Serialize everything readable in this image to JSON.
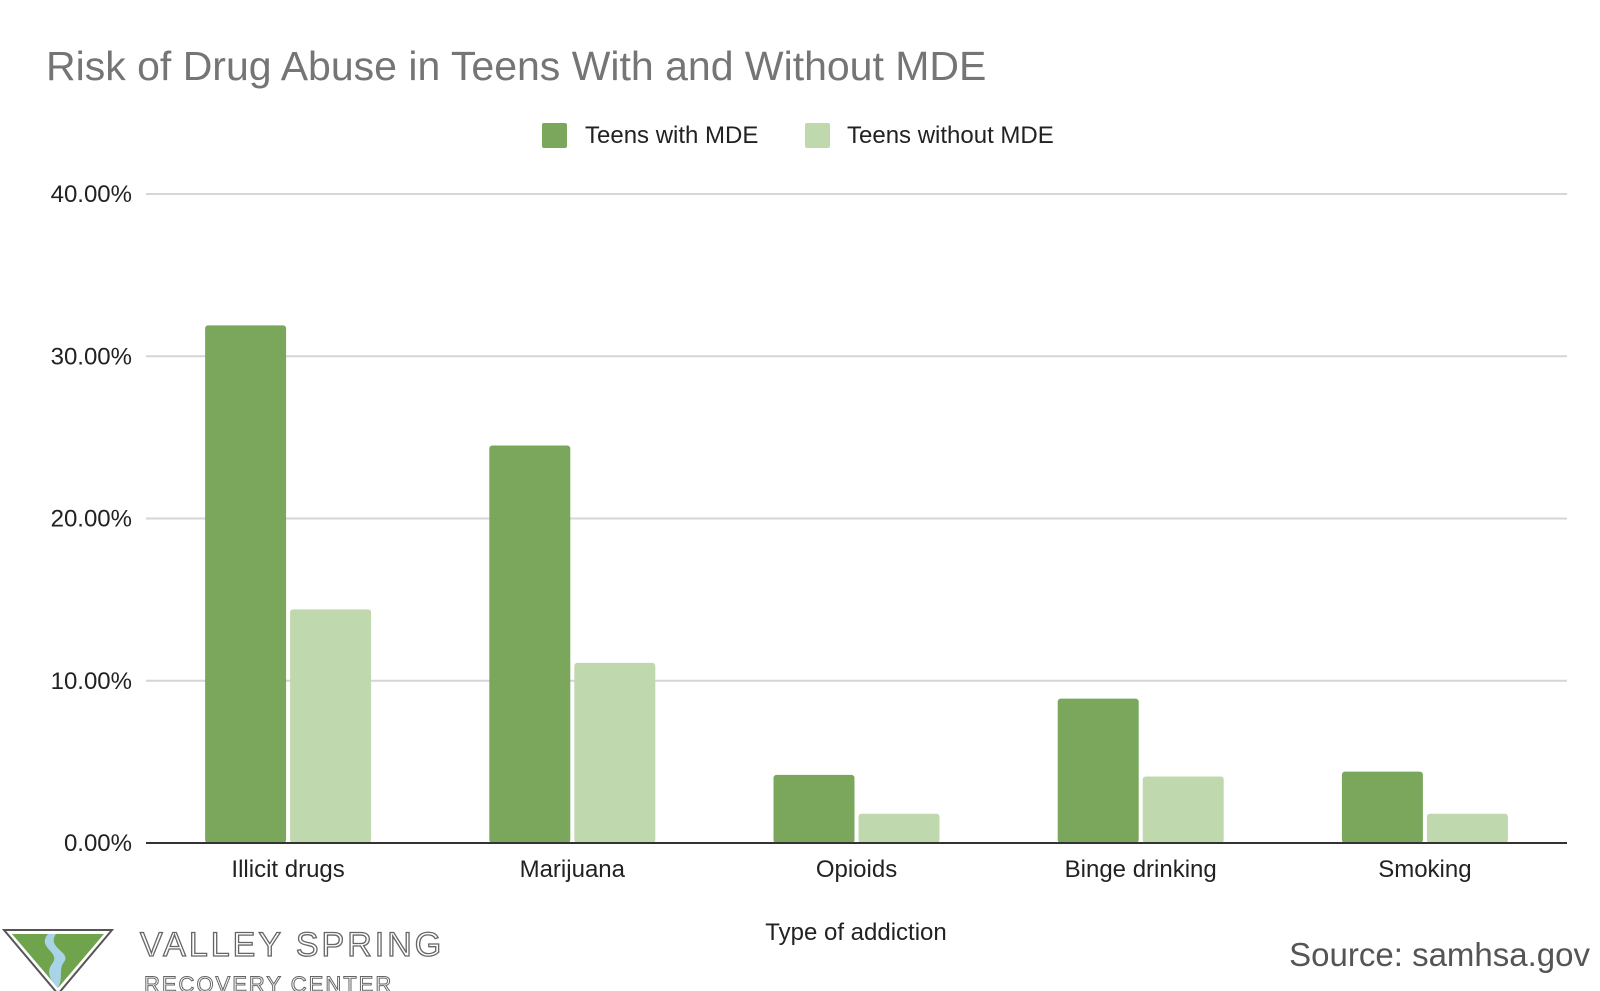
{
  "chart_data": {
    "type": "bar",
    "title": "Risk of Drug Abuse in Teens With and Without MDE",
    "categories": [
      "Illicit drugs",
      "Marijuana",
      "Opioids",
      "Binge drinking",
      "Smoking"
    ],
    "series": [
      {
        "name": "Teens with MDE",
        "color": "#7aa75c",
        "values": [
          31.9,
          24.5,
          4.2,
          8.9,
          4.4
        ]
      },
      {
        "name": "Teens without MDE",
        "color": "#bfd8ae",
        "values": [
          14.4,
          11.1,
          1.8,
          4.1,
          1.8
        ]
      }
    ],
    "xlabel": "Type of addiction",
    "ylabel": "",
    "ylim": [
      0,
      40
    ],
    "yticks": [
      "0.00%",
      "10.00%",
      "20.00%",
      "30.00%",
      "40.00%"
    ],
    "legend_position": "top-center",
    "grid": true
  },
  "branding": {
    "logo_line1": "VALLEY SPRING",
    "logo_line2": "RECOVERY CENTER",
    "logo_colors": {
      "green": "#6fa44c",
      "blue": "#a9d3e6"
    }
  },
  "source": "Source: samhsa.gov"
}
